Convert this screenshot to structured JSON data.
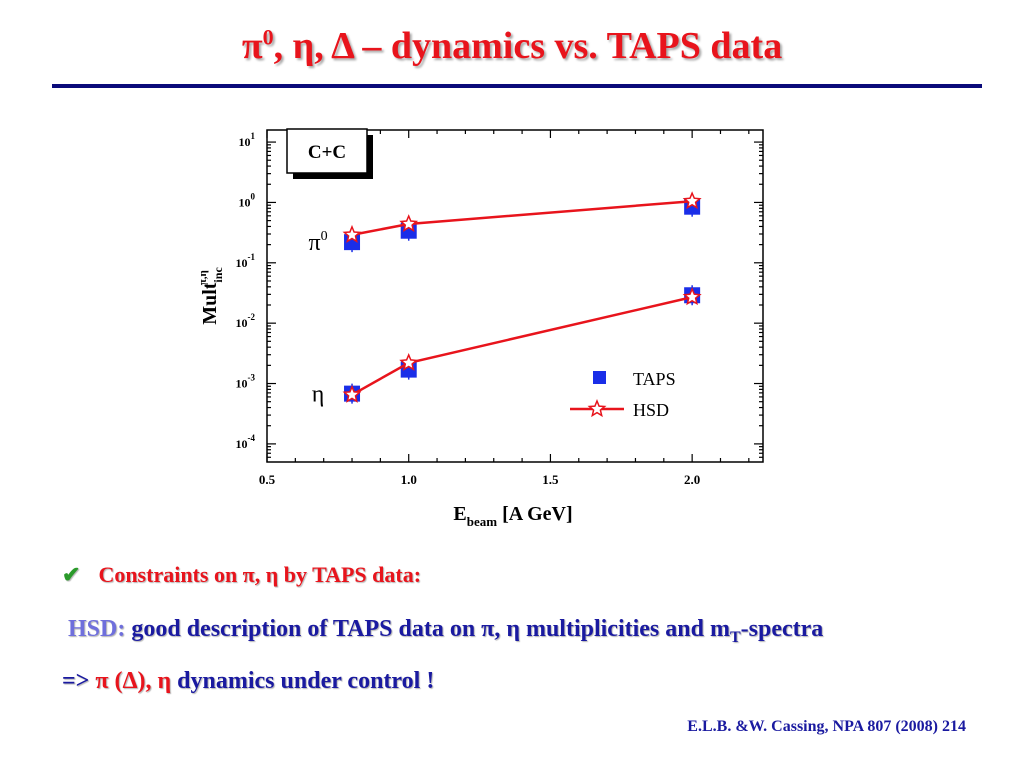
{
  "slide": {
    "title_main": "π",
    "title_sup": "0",
    "title_rest": ", η, Δ – dynamics vs. TAPS data",
    "bullet1": "Constraints on π, η by TAPS data:",
    "bullet2_hsd": "HSD:",
    "bullet2_text": " good description of TAPS data on π, η multiplicities and m",
    "bullet2_sub": "T",
    "bullet2_end": "-spectra",
    "bullet3_prefix": "=> ",
    "bullet3_red": "π (Δ), η",
    "bullet3_rest": " dynamics under control !",
    "reference": "E.L.B. &W. Cassing, NPA 807 (2008) 214",
    "check_icon": "✔"
  },
  "chart_data": {
    "type": "scatter",
    "system_label": "C+C",
    "xlabel_main": "E",
    "xlabel_sub": "beam",
    "xlabel_rest": " [A GeV]",
    "ylabel_main": "Mult",
    "ylabel_sub": "inc",
    "ylabel_sup": "π,η",
    "xlim": [
      0.5,
      2.25
    ],
    "x_ticks": [
      "0.5",
      "1.0",
      "1.5",
      "2.0"
    ],
    "y_log_scale": true,
    "ylim_exp": [
      -4.3,
      1.2
    ],
    "y_ticks": [
      {
        "base": "10",
        "exp": "1",
        "value": 1
      },
      {
        "base": "10",
        "exp": "0",
        "value": 0
      },
      {
        "base": "10",
        "exp": "-1",
        "value": -1
      },
      {
        "base": "10",
        "exp": "-2",
        "value": -2
      },
      {
        "base": "10",
        "exp": "-3",
        "value": -3
      },
      {
        "base": "10",
        "exp": "-4",
        "value": -4
      }
    ],
    "curve_labels": [
      {
        "text": "π",
        "sup": "0",
        "series": "pi0"
      },
      {
        "text": "η",
        "sup": "",
        "series": "eta"
      }
    ],
    "series": [
      {
        "name": "TAPS",
        "id": "taps_pi0",
        "marker": "square",
        "color": "#1a2ee8",
        "x": [
          0.8,
          1.0,
          2.0
        ],
        "y": [
          0.22,
          0.34,
          0.85
        ]
      },
      {
        "name": "TAPS",
        "id": "taps_eta",
        "marker": "square",
        "color": "#1a2ee8",
        "x": [
          0.8,
          1.0,
          2.0
        ],
        "y": [
          0.00068,
          0.0017,
          0.029
        ]
      },
      {
        "name": "HSD",
        "id": "hsd_pi0",
        "marker": "star-line",
        "color": "#e8141c",
        "x": [
          0.8,
          1.0,
          2.0
        ],
        "y": [
          0.29,
          0.44,
          1.05
        ]
      },
      {
        "name": "HSD",
        "id": "hsd_eta",
        "marker": "star-line",
        "color": "#e8141c",
        "x": [
          0.8,
          1.0,
          2.0
        ],
        "y": [
          0.00065,
          0.0022,
          0.027
        ]
      }
    ],
    "legend": [
      "TAPS",
      "HSD"
    ],
    "legend_position": "bottom-right"
  }
}
